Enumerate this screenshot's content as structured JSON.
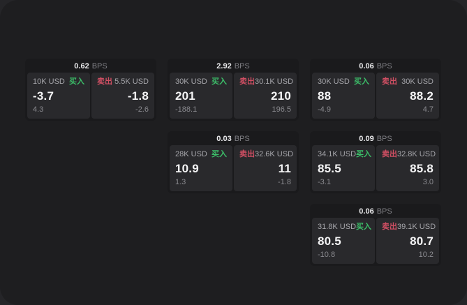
{
  "labels": {
    "bps_unit": "BPS",
    "buy": "买入",
    "sell": "卖出"
  },
  "colors": {
    "buy_green": "#3cbe69",
    "sell_red": "#d04f63",
    "window_bg": "#1e1e20",
    "card_bg": "#1a1a1c",
    "tile_bg": "#29292c",
    "big_text": "#f4f4f5",
    "muted_text": "#8a8a8f"
  },
  "cards": [
    {
      "bps": "0.62",
      "buy": {
        "amount": "10K USD",
        "price": "-3.7",
        "change": "4.3"
      },
      "sell": {
        "amount": "5.5K USD",
        "price": "-1.8",
        "change": "-2.6"
      }
    },
    {
      "bps": "2.92",
      "buy": {
        "amount": "30K USD",
        "price": "201",
        "change": "-188.1"
      },
      "sell": {
        "amount": "30.1K USD",
        "price": "210",
        "change": "196.5"
      }
    },
    {
      "bps": "0.06",
      "buy": {
        "amount": "30K USD",
        "price": "88",
        "change": "-4.9"
      },
      "sell": {
        "amount": "30K USD",
        "price": "88.2",
        "change": "4.7"
      }
    },
    {
      "bps": "0.03",
      "buy": {
        "amount": "28K USD",
        "price": "10.9",
        "change": "1.3"
      },
      "sell": {
        "amount": "32.6K USD",
        "price": "11",
        "change": "-1.8"
      }
    },
    {
      "bps": "0.09",
      "buy": {
        "amount": "34.1K USD",
        "price": "85.5",
        "change": "-3.1"
      },
      "sell": {
        "amount": "32.8K USD",
        "price": "85.8",
        "change": "3.0"
      }
    },
    {
      "bps": "0.06",
      "buy": {
        "amount": "31.8K USD",
        "price": "80.5",
        "change": "-10.8"
      },
      "sell": {
        "amount": "39.1K USD",
        "price": "80.7",
        "change": "10.2"
      }
    }
  ]
}
